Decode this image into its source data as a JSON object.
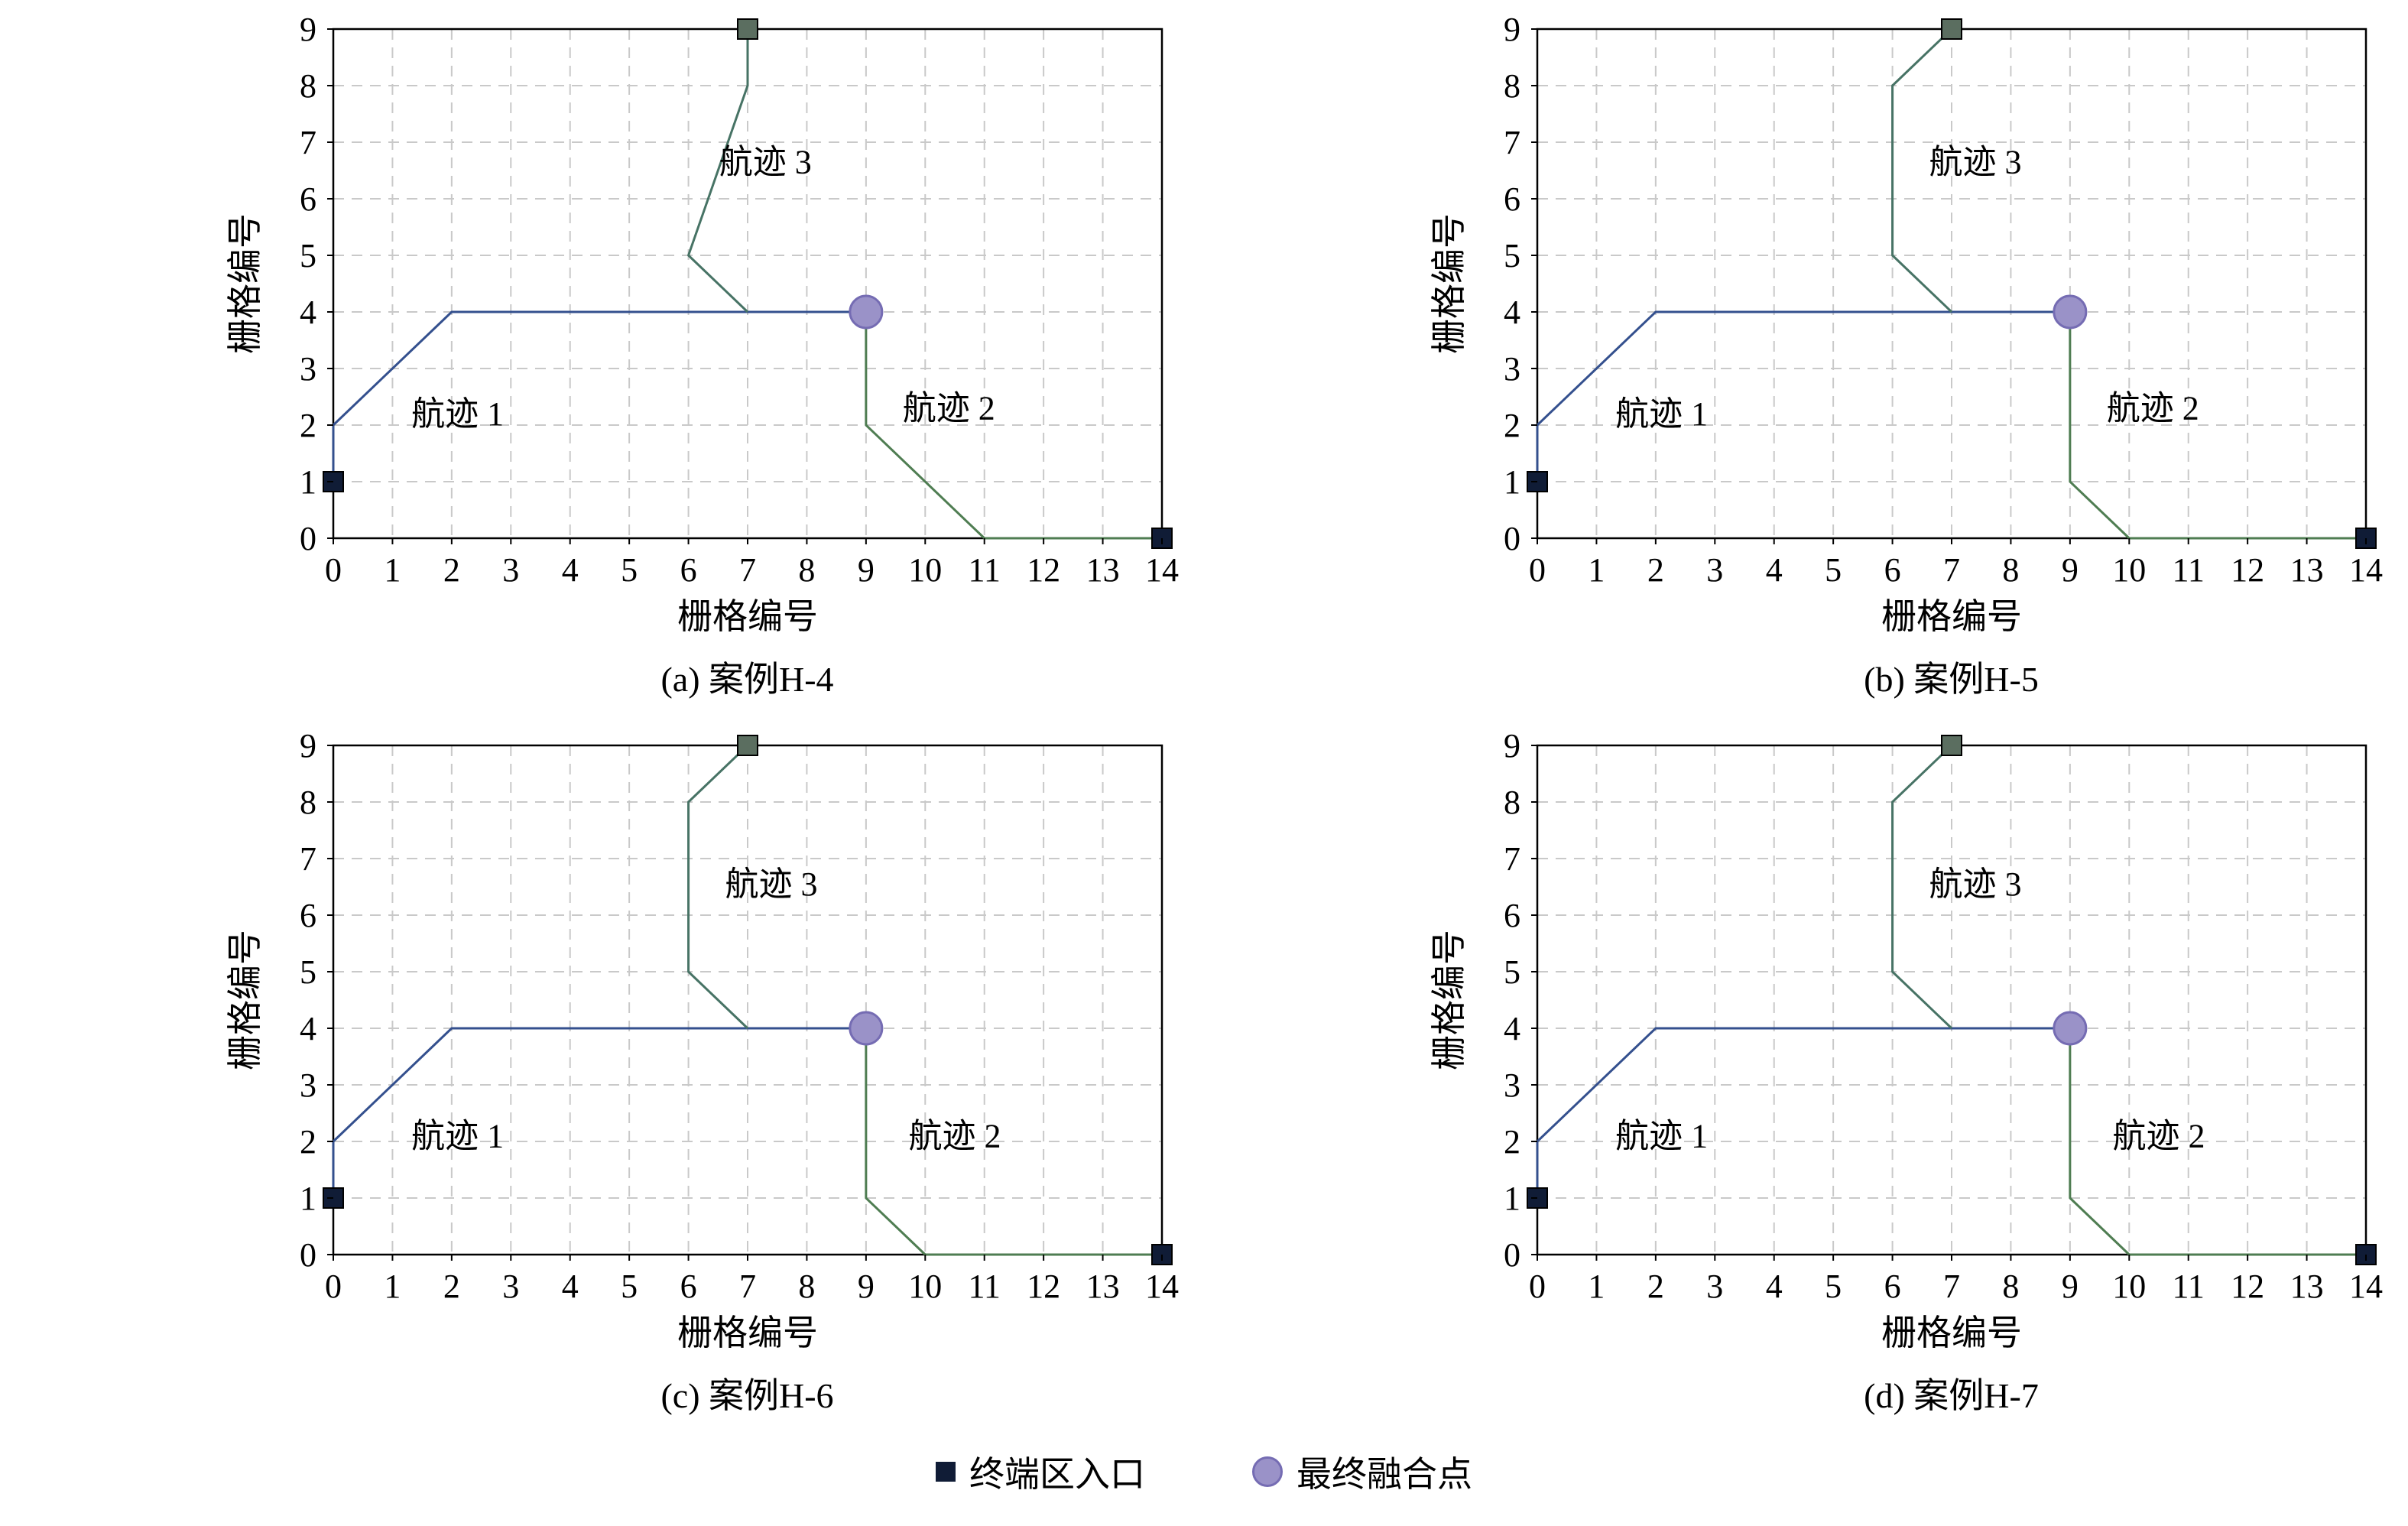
{
  "page": {
    "background": "#ffffff"
  },
  "colors": {
    "track1": "#34508e",
    "track2": "#4f7d52",
    "track3": "#477365",
    "entry": "#101c36",
    "exit": "#5b6e60",
    "merge_fill": "#9a92c8",
    "merge_edge": "#756cb3",
    "grid": "#c9c9c9",
    "frame": "#000000",
    "text": "#000000"
  },
  "legend": {
    "items": [
      {
        "kind": "entry",
        "label": "终端区入口"
      },
      {
        "kind": "merge",
        "label": "最终融合点"
      }
    ]
  },
  "chart_data": [
    {
      "type": "line",
      "caption": "(a) 案例H-4",
      "xlabel": "栅格编号",
      "ylabel": "栅格编号",
      "xlim": [
        0,
        14
      ],
      "ylim": [
        0,
        9
      ],
      "xticks": [
        0,
        1,
        2,
        3,
        4,
        5,
        6,
        7,
        8,
        9,
        10,
        11,
        12,
        13,
        14
      ],
      "yticks": [
        0,
        1,
        2,
        3,
        4,
        5,
        6,
        7,
        8,
        9
      ],
      "grid": "dashed",
      "series": [
        {
          "name": "航迹 1",
          "color_key": "track1",
          "points": [
            [
              0,
              1
            ],
            [
              0,
              2
            ],
            [
              2,
              4
            ],
            [
              9,
              4
            ]
          ]
        },
        {
          "name": "航迹 2",
          "color_key": "track2",
          "points": [
            [
              14,
              0
            ],
            [
              11,
              0
            ],
            [
              9,
              2
            ],
            [
              9,
              4
            ]
          ]
        },
        {
          "name": "航迹 3",
          "color_key": "track3",
          "points": [
            [
              7,
              9
            ],
            [
              7,
              8
            ],
            [
              6,
              5
            ],
            [
              7,
              4
            ]
          ]
        }
      ],
      "annotations": [
        {
          "text": "航迹 1",
          "x": 2.1,
          "y": 2.0
        },
        {
          "text": "航迹 2",
          "x": 10.4,
          "y": 2.1
        },
        {
          "text": "航迹 3",
          "x": 7.3,
          "y": 6.45
        }
      ],
      "markers": [
        {
          "kind": "entry",
          "x": 0,
          "y": 1
        },
        {
          "kind": "entry",
          "x": 14,
          "y": 0
        },
        {
          "kind": "exit",
          "x": 7,
          "y": 9
        },
        {
          "kind": "merge",
          "x": 9,
          "y": 4
        }
      ]
    },
    {
      "type": "line",
      "caption": "(b) 案例H-5",
      "xlabel": "栅格编号",
      "ylabel": "栅格编号",
      "xlim": [
        0,
        14
      ],
      "ylim": [
        0,
        9
      ],
      "xticks": [
        0,
        1,
        2,
        3,
        4,
        5,
        6,
        7,
        8,
        9,
        10,
        11,
        12,
        13,
        14
      ],
      "yticks": [
        0,
        1,
        2,
        3,
        4,
        5,
        6,
        7,
        8,
        9
      ],
      "grid": "dashed",
      "series": [
        {
          "name": "航迹 1",
          "color_key": "track1",
          "points": [
            [
              0,
              1
            ],
            [
              0,
              2
            ],
            [
              2,
              4
            ],
            [
              9,
              4
            ]
          ]
        },
        {
          "name": "航迹 2",
          "color_key": "track2",
          "points": [
            [
              14,
              0
            ],
            [
              10,
              0
            ],
            [
              9,
              1
            ],
            [
              9,
              4
            ]
          ]
        },
        {
          "name": "航迹 3",
          "color_key": "track3",
          "points": [
            [
              7,
              9
            ],
            [
              6,
              8
            ],
            [
              6,
              5
            ],
            [
              7,
              4
            ]
          ]
        }
      ],
      "annotations": [
        {
          "text": "航迹 1",
          "x": 2.1,
          "y": 2.0
        },
        {
          "text": "航迹 2",
          "x": 10.4,
          "y": 2.1
        },
        {
          "text": "航迹 3",
          "x": 7.4,
          "y": 6.45
        }
      ],
      "markers": [
        {
          "kind": "entry",
          "x": 0,
          "y": 1
        },
        {
          "kind": "entry",
          "x": 14,
          "y": 0
        },
        {
          "kind": "exit",
          "x": 7,
          "y": 9
        },
        {
          "kind": "merge",
          "x": 9,
          "y": 4
        }
      ]
    },
    {
      "type": "line",
      "caption": "(c) 案例H-6",
      "xlabel": "栅格编号",
      "ylabel": "栅格编号",
      "xlim": [
        0,
        14
      ],
      "ylim": [
        0,
        9
      ],
      "xticks": [
        0,
        1,
        2,
        3,
        4,
        5,
        6,
        7,
        8,
        9,
        10,
        11,
        12,
        13,
        14
      ],
      "yticks": [
        0,
        1,
        2,
        3,
        4,
        5,
        6,
        7,
        8,
        9
      ],
      "grid": "dashed",
      "series": [
        {
          "name": "航迹 1",
          "color_key": "track1",
          "points": [
            [
              0,
              1
            ],
            [
              0,
              2
            ],
            [
              2,
              4
            ],
            [
              9,
              4
            ]
          ]
        },
        {
          "name": "航迹 2",
          "color_key": "track2",
          "points": [
            [
              14,
              0
            ],
            [
              10,
              0
            ],
            [
              9,
              1
            ],
            [
              9,
              4
            ]
          ]
        },
        {
          "name": "航迹 3",
          "color_key": "track3",
          "points": [
            [
              7,
              9
            ],
            [
              6,
              8
            ],
            [
              6,
              5
            ],
            [
              7,
              4
            ]
          ]
        }
      ],
      "annotations": [
        {
          "text": "航迹 1",
          "x": 2.1,
          "y": 1.9
        },
        {
          "text": "航迹 2",
          "x": 10.5,
          "y": 1.9
        },
        {
          "text": "航迹 3",
          "x": 7.4,
          "y": 6.35
        }
      ],
      "markers": [
        {
          "kind": "entry",
          "x": 0,
          "y": 1
        },
        {
          "kind": "entry",
          "x": 14,
          "y": 0
        },
        {
          "kind": "exit",
          "x": 7,
          "y": 9
        },
        {
          "kind": "merge",
          "x": 9,
          "y": 4
        }
      ]
    },
    {
      "type": "line",
      "caption": "(d) 案例H-7",
      "xlabel": "栅格编号",
      "ylabel": "栅格编号",
      "xlim": [
        0,
        14
      ],
      "ylim": [
        0,
        9
      ],
      "xticks": [
        0,
        1,
        2,
        3,
        4,
        5,
        6,
        7,
        8,
        9,
        10,
        11,
        12,
        13,
        14
      ],
      "yticks": [
        0,
        1,
        2,
        3,
        4,
        5,
        6,
        7,
        8,
        9
      ],
      "grid": "dashed",
      "series": [
        {
          "name": "航迹 1",
          "color_key": "track1",
          "points": [
            [
              0,
              1
            ],
            [
              0,
              2
            ],
            [
              2,
              4
            ],
            [
              9,
              4
            ]
          ]
        },
        {
          "name": "航迹 2",
          "color_key": "track2",
          "points": [
            [
              14,
              0
            ],
            [
              10,
              0
            ],
            [
              9,
              1
            ],
            [
              9,
              4
            ]
          ]
        },
        {
          "name": "航迹 3",
          "color_key": "track3",
          "points": [
            [
              7,
              9
            ],
            [
              6,
              8
            ],
            [
              6,
              5
            ],
            [
              7,
              4
            ]
          ]
        }
      ],
      "annotations": [
        {
          "text": "航迹 1",
          "x": 2.1,
          "y": 1.9
        },
        {
          "text": "航迹 2",
          "x": 10.5,
          "y": 1.9
        },
        {
          "text": "航迹 3",
          "x": 7.4,
          "y": 6.35
        }
      ],
      "markers": [
        {
          "kind": "entry",
          "x": 0,
          "y": 1
        },
        {
          "kind": "entry",
          "x": 14,
          "y": 0
        },
        {
          "kind": "exit",
          "x": 7,
          "y": 9
        },
        {
          "kind": "merge",
          "x": 9,
          "y": 4
        }
      ]
    }
  ]
}
